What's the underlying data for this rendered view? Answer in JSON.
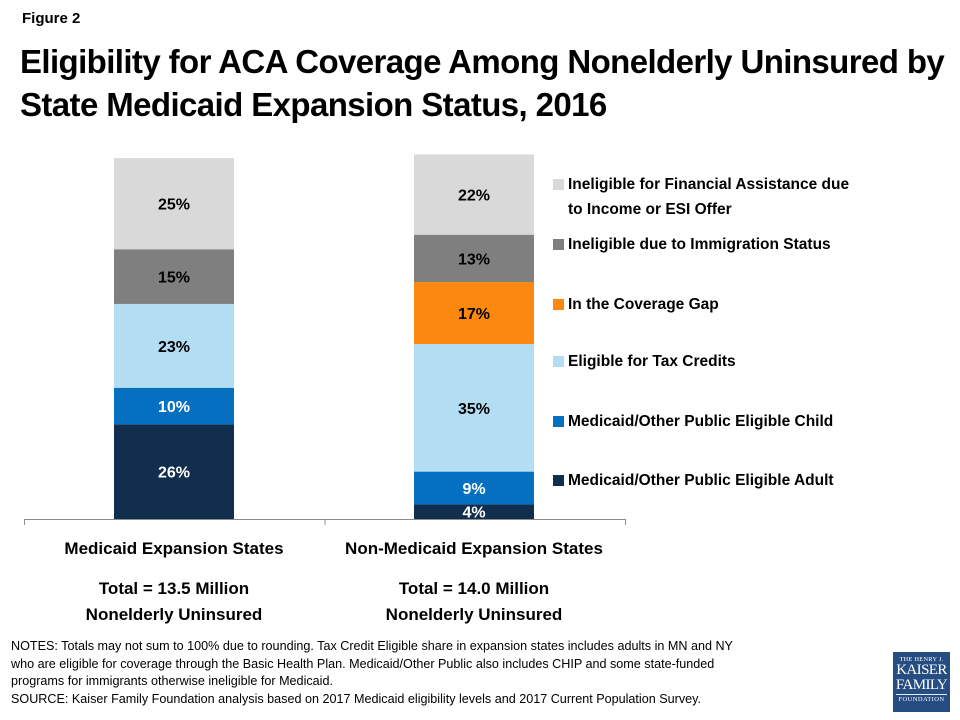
{
  "figure_label": "Figure 2",
  "title": "Eligibility for ACA Coverage Among Nonelderly Uninsured by State Medicaid Expansion Status, 2016",
  "chart_data": {
    "type": "bar",
    "stacked": true,
    "title": "Eligibility for ACA Coverage Among Nonelderly Uninsured by State Medicaid Expansion Status, 2016",
    "xlabel": "",
    "ylabel": "",
    "ylim": [
      0,
      100
    ],
    "grid": false,
    "legend_position": "right",
    "categories": [
      "Medicaid Expansion States",
      "Non-Medicaid Expansion States"
    ],
    "category_subtitles": [
      [
        "Total = 13.5 Million",
        "Nonelderly Uninsured"
      ],
      [
        "Total = 14.0 Million",
        "Nonelderly Uninsured"
      ]
    ],
    "series": [
      {
        "name": "Medicaid/Other Public Eligible Adult",
        "color": "#112e4e",
        "label_color": "#ffffff",
        "values": [
          26,
          4
        ]
      },
      {
        "name": "Medicaid/Other Public Eligible Child",
        "color": "#0570c0",
        "label_color": "#ffffff",
        "values": [
          10,
          9
        ]
      },
      {
        "name": "Eligible for Tax Credits",
        "color": "#b2ddf2",
        "label_color": "#000000",
        "values": [
          23,
          35
        ]
      },
      {
        "name": "In the Coverage Gap",
        "color": "#fd880f",
        "label_color": "#000000",
        "values": [
          null,
          17
        ]
      },
      {
        "name": "Ineligible due to Immigration Status",
        "color": "#7f7f7f",
        "label_color": "#000000",
        "values": [
          15,
          13
        ]
      },
      {
        "name": "Ineligible for Financial Assistance due to Income or ESI Offer",
        "color": "#d9d9d9",
        "label_color": "#000000",
        "values": [
          25,
          22
        ]
      }
    ],
    "value_suffix": "%"
  },
  "legend": {
    "items": [
      {
        "lines": [
          "Ineligible for Financial Assistance due",
          "to Income or ESI Offer"
        ],
        "color": "#d9d9d9"
      },
      {
        "lines": [
          "Ineligible due to Immigration Status"
        ],
        "color": "#7f7f7f"
      },
      {
        "lines": [
          "In the Coverage Gap"
        ],
        "color": "#fd880f"
      },
      {
        "lines": [
          "Eligible for Tax Credits"
        ],
        "color": "#b2ddf2"
      },
      {
        "lines": [
          "Medicaid/Other Public Eligible Child"
        ],
        "color": "#0570c0"
      },
      {
        "lines": [
          "Medicaid/Other Public Eligible Adult"
        ],
        "color": "#112e4e"
      }
    ]
  },
  "notes": [
    "NOTES: Totals may not sum to 100% due to rounding. Tax Credit Eligible share in expansion states includes adults in MN and NY",
    "who are eligible for coverage through  the Basic Health Plan. Medicaid/Other Public also includes CHIP and some state-funded",
    "programs for immigrants otherwise ineligible for Medicaid.",
    "SOURCE: Kaiser Family Foundation  analysis based on 2017 Medicaid eligibility levels and 2017 Current Population Survey."
  ],
  "logo": {
    "line1": "THE HENRY J.",
    "line2": "KAISER",
    "line3": "FAMILY",
    "line4": "FOUNDATION"
  }
}
